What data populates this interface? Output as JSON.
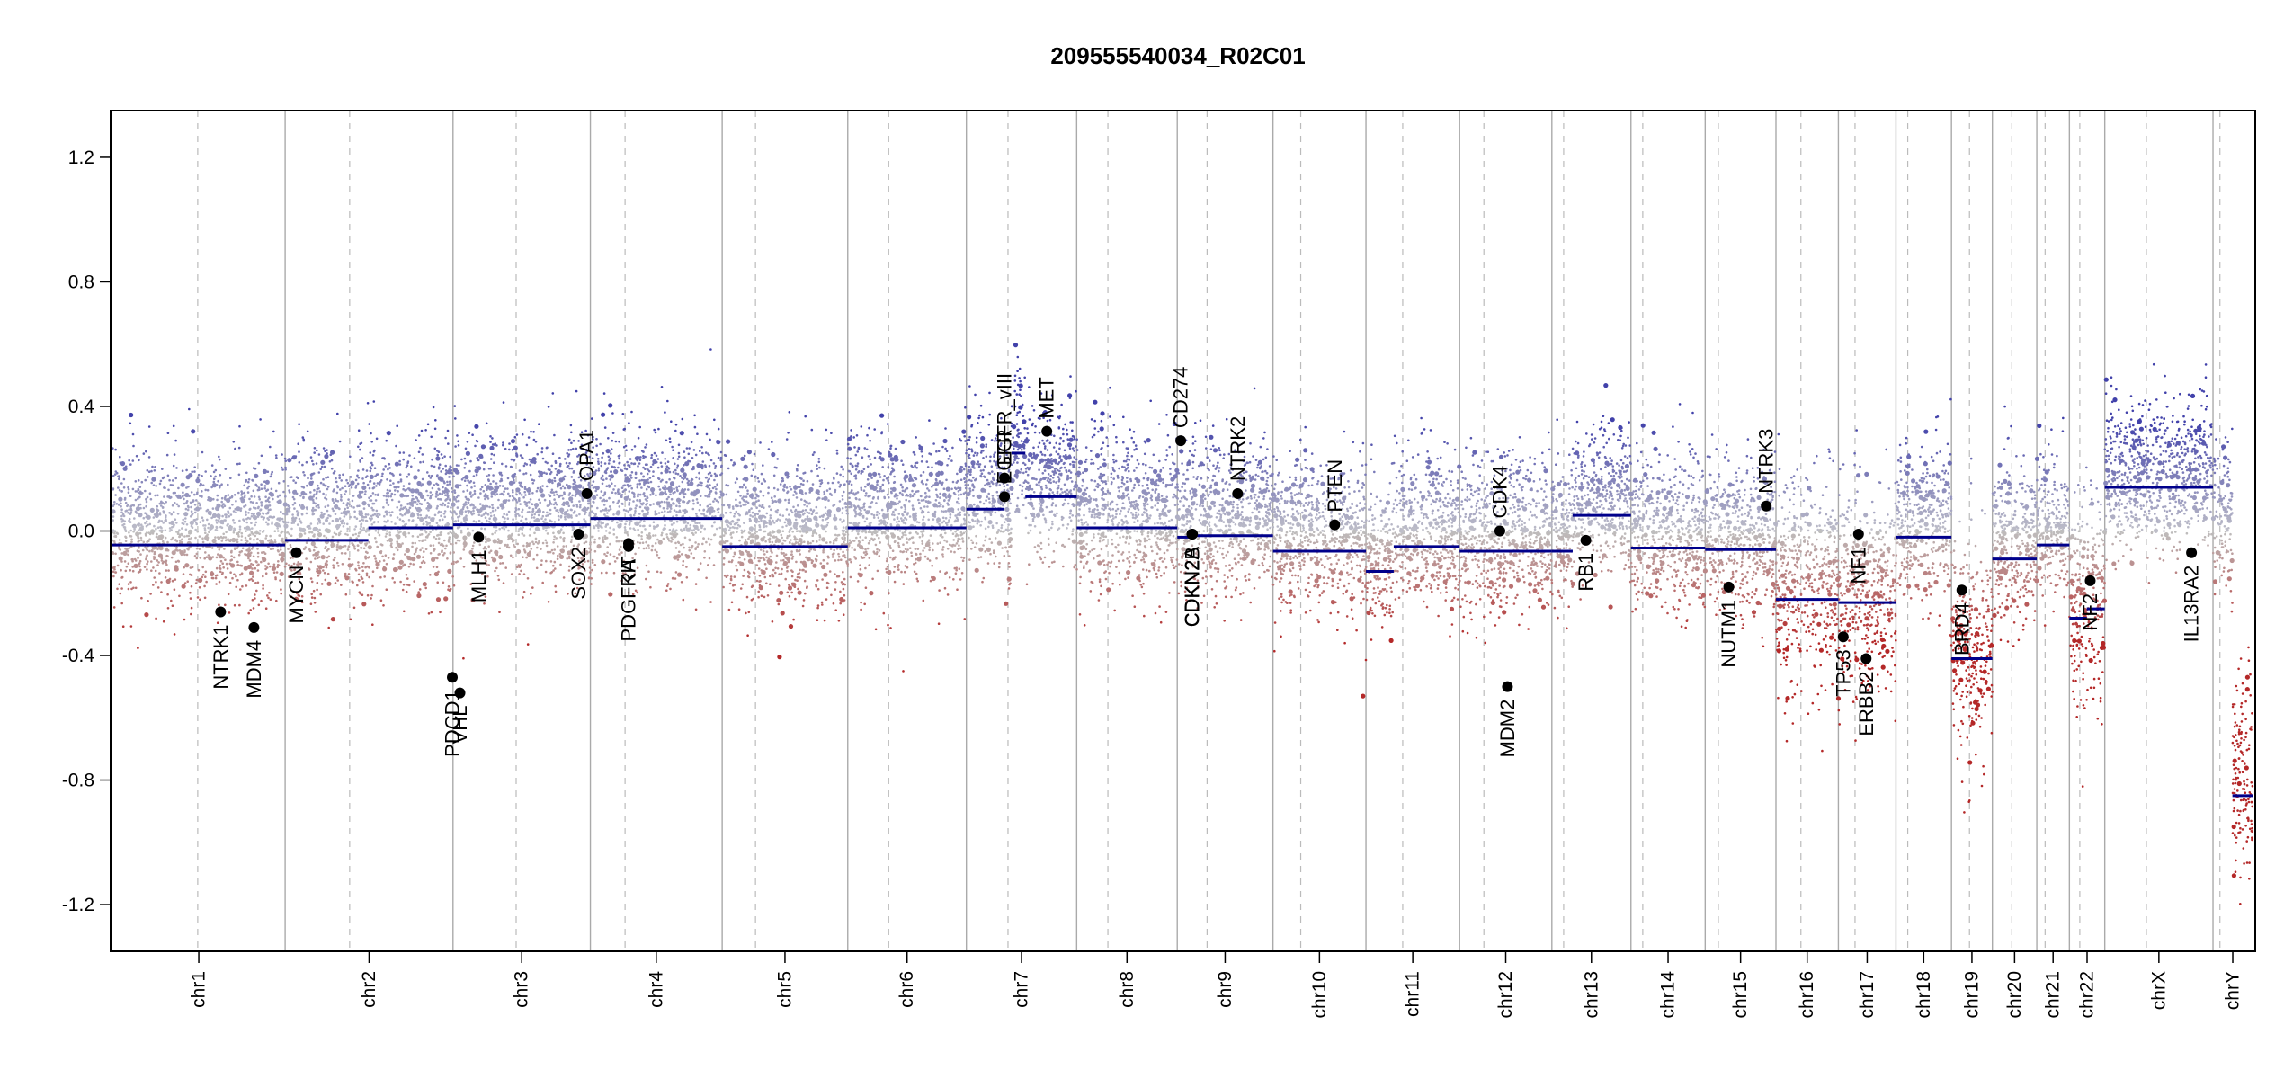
{
  "chart_data": {
    "type": "scatter",
    "title": "209555540034_R02C01",
    "xlabel": "",
    "ylabel": "",
    "ylim": [
      -1.35,
      1.35
    ],
    "yticks": [
      -1.2,
      -0.8,
      -0.4,
      0.0,
      0.4,
      0.8,
      1.2
    ],
    "ytick_labels": [
      "-1.2",
      "-0.8",
      "-0.4",
      "0.0",
      "0.4",
      "0.8",
      "1.2"
    ],
    "colors": {
      "segment": "#00008B",
      "gain": "#3A3AA8",
      "loss": "#B22222",
      "neutral": "#BDBDBD",
      "chrom_border": "#AAAAAA",
      "centromere": "#BBBBBB"
    },
    "chromosomes": [
      {
        "name": "chr1",
        "len": 249,
        "cen": 123
      },
      {
        "name": "chr2",
        "len": 242,
        "cen": 93
      },
      {
        "name": "chr3",
        "len": 198,
        "cen": 91
      },
      {
        "name": "chr4",
        "len": 190,
        "cen": 50
      },
      {
        "name": "chr5",
        "len": 181,
        "cen": 48
      },
      {
        "name": "chr6",
        "len": 171,
        "cen": 59
      },
      {
        "name": "chr7",
        "len": 159,
        "cen": 60
      },
      {
        "name": "chr8",
        "len": 145,
        "cen": 45
      },
      {
        "name": "chr9",
        "len": 138,
        "cen": 43
      },
      {
        "name": "chr10",
        "len": 134,
        "cen": 40
      },
      {
        "name": "chr11",
        "len": 135,
        "cen": 53
      },
      {
        "name": "chr12",
        "len": 133,
        "cen": 35
      },
      {
        "name": "chr13",
        "len": 114,
        "cen": 17
      },
      {
        "name": "chr14",
        "len": 107,
        "cen": 17
      },
      {
        "name": "chr15",
        "len": 102,
        "cen": 19
      },
      {
        "name": "chr16",
        "len": 90,
        "cen": 36
      },
      {
        "name": "chr17",
        "len": 83,
        "cen": 24
      },
      {
        "name": "chr18",
        "len": 80,
        "cen": 17
      },
      {
        "name": "chr19",
        "len": 59,
        "cen": 26
      },
      {
        "name": "chr20",
        "len": 64,
        "cen": 28
      },
      {
        "name": "chr21",
        "len": 47,
        "cen": 12
      },
      {
        "name": "chr22",
        "len": 51,
        "cen": 15
      },
      {
        "name": "chrX",
        "len": 156,
        "cen": 60
      },
      {
        "name": "chrY",
        "len": 57,
        "cen": 10
      }
    ],
    "segments": [
      {
        "chr": "chr1",
        "start": 0,
        "end": 249,
        "value": -0.045
      },
      {
        "chr": "chr2",
        "start": 0,
        "end": 120,
        "value": -0.03
      },
      {
        "chr": "chr2",
        "start": 120,
        "end": 242,
        "value": 0.01
      },
      {
        "chr": "chr3",
        "start": 0,
        "end": 198,
        "value": 0.02
      },
      {
        "chr": "chr4",
        "start": 0,
        "end": 190,
        "value": 0.04
      },
      {
        "chr": "chr5",
        "start": 0,
        "end": 181,
        "value": -0.05
      },
      {
        "chr": "chr6",
        "start": 0,
        "end": 171,
        "value": 0.01
      },
      {
        "chr": "chr7",
        "start": 0,
        "end": 55,
        "value": 0.07
      },
      {
        "chr": "chr7",
        "start": 65,
        "end": 85,
        "value": 0.25
      },
      {
        "chr": "chr7",
        "start": 85,
        "end": 159,
        "value": 0.11
      },
      {
        "chr": "chr8",
        "start": 0,
        "end": 145,
        "value": 0.01
      },
      {
        "chr": "chr9",
        "start": 0,
        "end": 20,
        "value": -0.02
      },
      {
        "chr": "chr9",
        "start": 20,
        "end": 138,
        "value": -0.015
      },
      {
        "chr": "chr10",
        "start": 0,
        "end": 134,
        "value": -0.065
      },
      {
        "chr": "chr11",
        "start": 0,
        "end": 40,
        "value": -0.13
      },
      {
        "chr": "chr11",
        "start": 40,
        "end": 135,
        "value": -0.05
      },
      {
        "chr": "chr12",
        "start": 0,
        "end": 133,
        "value": -0.065
      },
      {
        "chr": "chr13",
        "start": 0,
        "end": 30,
        "value": -0.065
      },
      {
        "chr": "chr13",
        "start": 30,
        "end": 114,
        "value": 0.05
      },
      {
        "chr": "chr14",
        "start": 0,
        "end": 107,
        "value": -0.055
      },
      {
        "chr": "chr15",
        "start": 0,
        "end": 102,
        "value": -0.06
      },
      {
        "chr": "chr16",
        "start": 0,
        "end": 90,
        "value": -0.22
      },
      {
        "chr": "chr17",
        "start": 0,
        "end": 83,
        "value": -0.23
      },
      {
        "chr": "chr18",
        "start": 0,
        "end": 80,
        "value": -0.02
      },
      {
        "chr": "chr19",
        "start": 0,
        "end": 59,
        "value": -0.41
      },
      {
        "chr": "chr20",
        "start": 0,
        "end": 64,
        "value": -0.09
      },
      {
        "chr": "chr21",
        "start": 0,
        "end": 47,
        "value": -0.045
      },
      {
        "chr": "chr22",
        "start": 0,
        "end": 25,
        "value": -0.28
      },
      {
        "chr": "chr22",
        "start": 25,
        "end": 51,
        "value": -0.25
      },
      {
        "chr": "chrX",
        "start": 0,
        "end": 156,
        "value": 0.14
      },
      {
        "chr": "chrY",
        "start": 28,
        "end": 57,
        "value": -0.85
      }
    ],
    "genes": [
      {
        "name": "NTRK1",
        "chr": "chr1",
        "pos": 156,
        "value": -0.26,
        "label_side": "below"
      },
      {
        "name": "MDM4",
        "chr": "chr1",
        "pos": 204,
        "value": -0.31,
        "label_side": "below"
      },
      {
        "name": "MYCN",
        "chr": "chr2",
        "pos": 16,
        "value": -0.07,
        "label_side": "below"
      },
      {
        "name": "PDCD1",
        "chr": "chr2",
        "pos": 241,
        "value": -0.47,
        "label_side": "below"
      },
      {
        "name": "VHL",
        "chr": "chr3",
        "pos": 10,
        "value": -0.52,
        "label_side": "below"
      },
      {
        "name": "MLH1",
        "chr": "chr3",
        "pos": 37,
        "value": -0.02,
        "label_side": "below"
      },
      {
        "name": "SOX2",
        "chr": "chr3",
        "pos": 181,
        "value": -0.01,
        "label_side": "below"
      },
      {
        "name": "OPA1",
        "chr": "chr3",
        "pos": 193,
        "value": 0.12,
        "label_side": "above"
      },
      {
        "name": "PDGFRA",
        "chr": "chr4",
        "pos": 55,
        "value": -0.05,
        "label_side": "below"
      },
      {
        "name": "KIT",
        "chr": "chr4",
        "pos": 55,
        "value": -0.04,
        "label_side": "below"
      },
      {
        "name": "EGFR",
        "chr": "chr7",
        "pos": 55,
        "value": 0.11,
        "label_side": "above"
      },
      {
        "name": "EGFR_vIII",
        "chr": "chr7",
        "pos": 55,
        "value": 0.17,
        "label_side": "above"
      },
      {
        "name": "MET",
        "chr": "chr7",
        "pos": 116,
        "value": 0.32,
        "label_side": "above"
      },
      {
        "name": "CD274",
        "chr": "chr9",
        "pos": 5,
        "value": 0.29,
        "label_side": "above"
      },
      {
        "name": "CDKN2A",
        "chr": "chr9",
        "pos": 21,
        "value": -0.01,
        "label_side": "below"
      },
      {
        "name": "CDKN2B",
        "chr": "chr9",
        "pos": 22,
        "value": -0.01,
        "label_side": "below"
      },
      {
        "name": "NTRK2",
        "chr": "chr9",
        "pos": 87,
        "value": 0.12,
        "label_side": "above"
      },
      {
        "name": "PTEN",
        "chr": "chr10",
        "pos": 89,
        "value": 0.02,
        "label_side": "above"
      },
      {
        "name": "CDK4",
        "chr": "chr12",
        "pos": 58,
        "value": 0.0,
        "label_side": "above"
      },
      {
        "name": "MDM2",
        "chr": "chr12",
        "pos": 69,
        "value": -0.5,
        "label_side": "below"
      },
      {
        "name": "RB1",
        "chr": "chr13",
        "pos": 49,
        "value": -0.03,
        "label_side": "below"
      },
      {
        "name": "NUTM1",
        "chr": "chr15",
        "pos": 34,
        "value": -0.18,
        "label_side": "below"
      },
      {
        "name": "NTRK3",
        "chr": "chr15",
        "pos": 88,
        "value": 0.08,
        "label_side": "above"
      },
      {
        "name": "TP53",
        "chr": "chr17",
        "pos": 7,
        "value": -0.34,
        "label_side": "below"
      },
      {
        "name": "NF1",
        "chr": "chr17",
        "pos": 29,
        "value": -0.01,
        "label_side": "below"
      },
      {
        "name": "ERBB2",
        "chr": "chr17",
        "pos": 40,
        "value": -0.41,
        "label_side": "below"
      },
      {
        "name": "BRD4",
        "chr": "chr19",
        "pos": 15,
        "value": -0.19,
        "label_side": "below"
      },
      {
        "name": "NF2",
        "chr": "chr22",
        "pos": 30,
        "value": -0.16,
        "label_side": "below"
      },
      {
        "name": "IL13RA2",
        "chr": "chrX",
        "pos": 125,
        "value": -0.07,
        "label_side": "below"
      }
    ],
    "grid": false,
    "legend": "none"
  }
}
